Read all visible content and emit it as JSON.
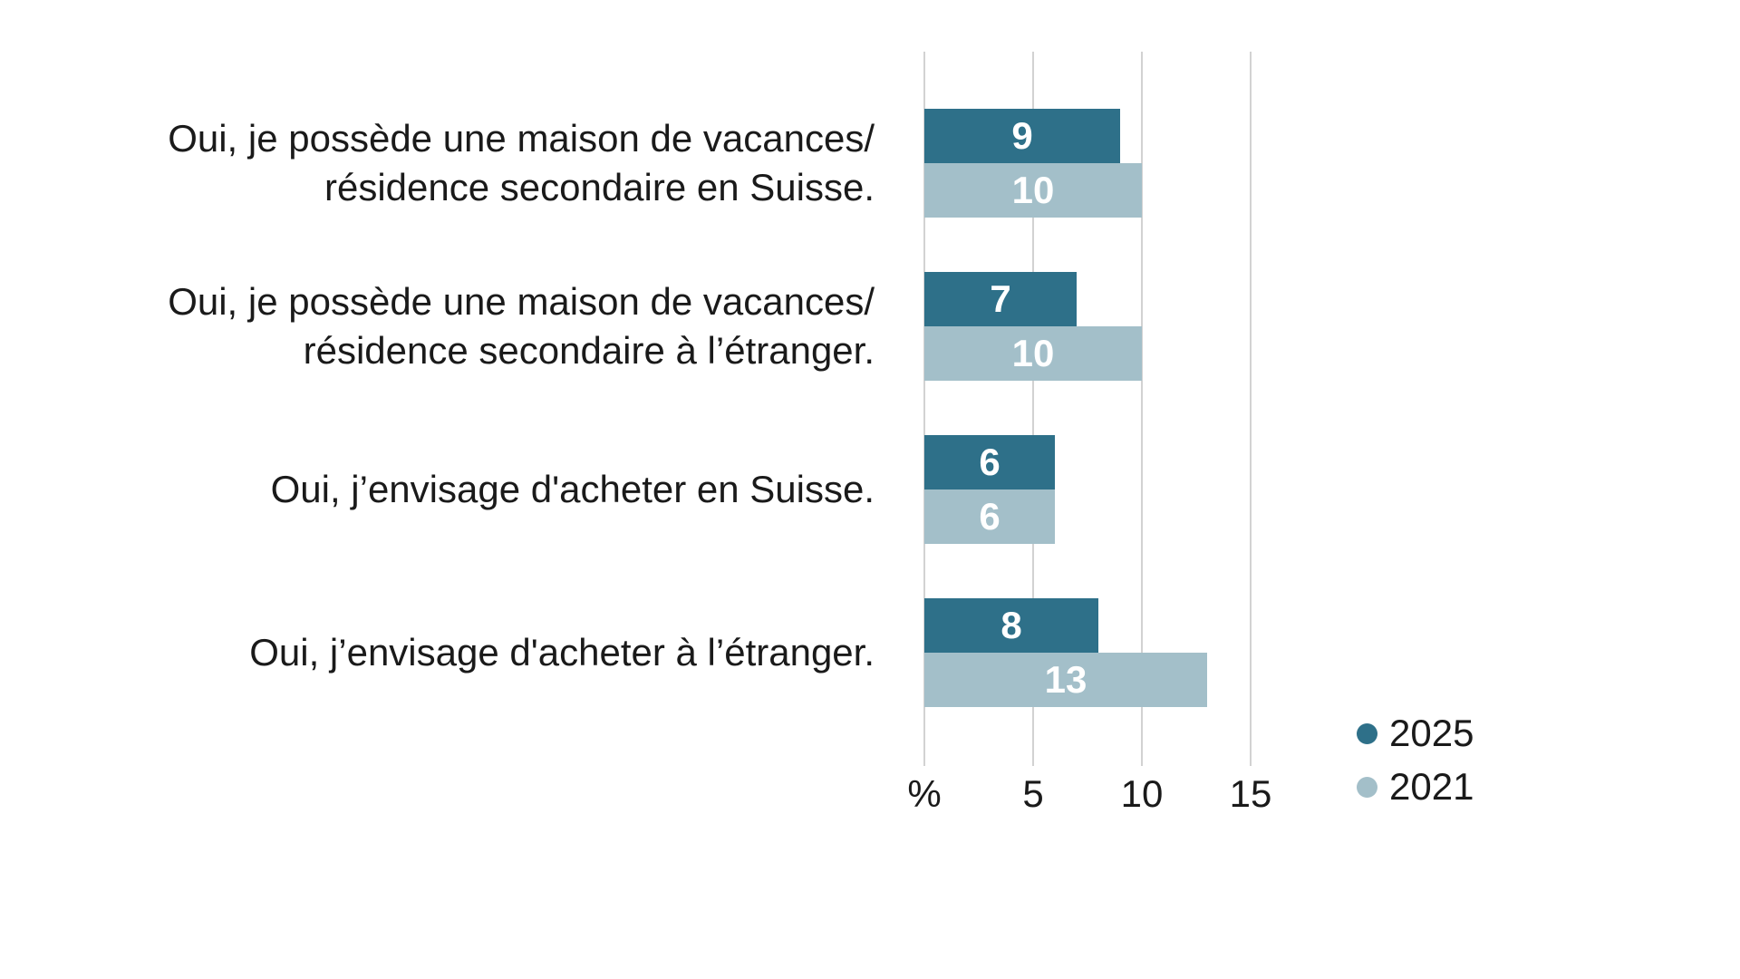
{
  "chart_data": {
    "type": "bar",
    "orientation": "horizontal",
    "title": "",
    "xlabel": "%",
    "x_ticks": [
      {
        "label": "%",
        "value": 0
      },
      {
        "label": "5",
        "value": 5
      },
      {
        "label": "10",
        "value": 10
      },
      {
        "label": "15",
        "value": 15
      }
    ],
    "xlim": [
      0,
      17.5
    ],
    "grid": "vertical-gridlines-on",
    "legend_position": "bottom-right",
    "categories": [
      "Oui, je possède une maison de vacances/ résidence secondaire en Suisse.",
      "Oui, je possède une maison de vacances/ résidence secondaire à l’étranger.",
      "Oui, j’envisage d'acheter en Suisse.",
      "Oui, j’envisage d'acheter à l’étranger."
    ],
    "series": [
      {
        "name": "2025",
        "color": "#2e7089",
        "values": [
          9,
          7,
          6,
          8
        ]
      },
      {
        "name": "2021",
        "color": "#a3bfc9",
        "values": [
          10,
          10,
          6,
          13
        ]
      }
    ],
    "rows": [
      {
        "label_lines": [
          "Oui, je possède une maison de vacances/",
          "résidence secondaire en Suisse."
        ],
        "v2025": 9,
        "v2025_label": "9",
        "v2021": 10,
        "v2021_label": "10"
      },
      {
        "label_lines": [
          "Oui, je possède une maison de vacances/",
          "résidence secondaire à l’étranger."
        ],
        "v2025": 7,
        "v2025_label": "7",
        "v2021": 10,
        "v2021_label": "10"
      },
      {
        "label_lines": [
          "Oui, j’envisage d'acheter en Suisse."
        ],
        "v2025": 6,
        "v2025_label": "6",
        "v2021": 6,
        "v2021_label": "6"
      },
      {
        "label_lines": [
          "Oui, j’envisage d'acheter à l’étranger."
        ],
        "v2025": 8,
        "v2025_label": "8",
        "v2021": 13,
        "v2021_label": "13"
      }
    ]
  },
  "axis": {
    "tick_labels": {
      "t0": "%",
      "t5": "5",
      "t10": "10",
      "t15": "15"
    }
  },
  "legend": {
    "items": [
      {
        "label": "2025",
        "color": "#2e7089"
      },
      {
        "label": "2021",
        "color": "#a3bfc9"
      }
    ]
  },
  "colors": {
    "series_2025": "#2e7089",
    "series_2021": "#a3bfc9",
    "gridline": "#d2d2d2",
    "text": "#1a1a1a",
    "value_label": "#ffffff",
    "background": "#ffffff"
  }
}
